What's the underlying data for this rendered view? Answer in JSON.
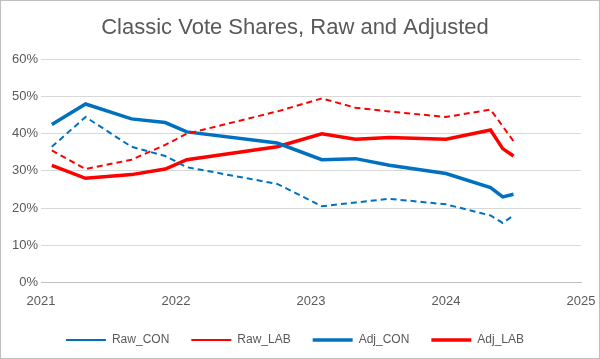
{
  "chart_data": {
    "type": "line",
    "title": "Classic Vote Shares, Raw and Adjusted",
    "x": [
      2021.08,
      2021.33,
      2021.67,
      2021.92,
      2022.08,
      2022.75,
      2023.08,
      2023.33,
      2023.58,
      2024.0,
      2024.33,
      2024.42,
      2024.5
    ],
    "series": [
      {
        "name": "Raw_CON",
        "color": "#0070C0",
        "line_style": "dashed",
        "values": [
          36.5,
          44.5,
          36.5,
          34,
          31,
          26.5,
          20.5,
          21.5,
          22.5,
          21,
          18,
          16,
          18
        ]
      },
      {
        "name": "Raw_LAB",
        "color": "#FF0000",
        "line_style": "dashed",
        "values": [
          35.5,
          30.5,
          33,
          37,
          40,
          46,
          49.5,
          47,
          46,
          44.5,
          46.5,
          42,
          38
        ]
      },
      {
        "name": "Adj_CON",
        "color": "#0070C0",
        "line_style": "solid",
        "values": [
          42.5,
          48,
          44,
          43,
          40.5,
          37.5,
          33,
          33.3,
          31.5,
          29.3,
          25.5,
          23,
          23.7
        ]
      },
      {
        "name": "Adj_LAB",
        "color": "#FF0000",
        "line_style": "solid",
        "values": [
          31.5,
          28,
          29,
          30.5,
          33,
          36.5,
          40,
          38.5,
          39,
          38.5,
          41,
          36,
          34
        ]
      }
    ],
    "xlim": [
      2021,
      2025
    ],
    "xticks": [
      2021,
      2022,
      2023,
      2024,
      2025
    ],
    "ylim": [
      0,
      60
    ],
    "yticks": [
      {
        "value": 0,
        "label": "0%"
      },
      {
        "value": 10,
        "label": "10%"
      },
      {
        "value": 20,
        "label": "20%"
      },
      {
        "value": 30,
        "label": "30%"
      },
      {
        "value": 40,
        "label": "40%"
      },
      {
        "value": 50,
        "label": "50%"
      },
      {
        "value": 60,
        "label": "60%"
      }
    ],
    "grid": "y",
    "legend": "bottom"
  }
}
